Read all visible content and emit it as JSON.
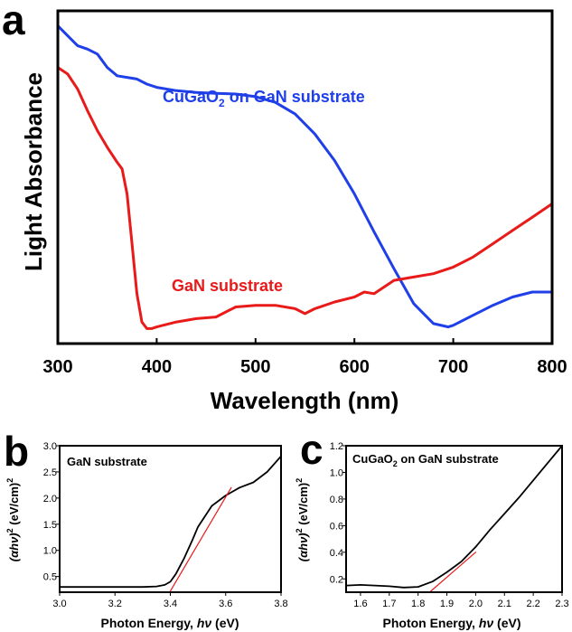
{
  "panels": {
    "a": {
      "letter": "a"
    },
    "b": {
      "letter": "b"
    },
    "c": {
      "letter": "c"
    }
  },
  "chart_data": [
    {
      "id": "a",
      "type": "line",
      "xlabel": "Wavelength (nm)",
      "ylabel": "Light Absorbance",
      "xlim": [
        300,
        800
      ],
      "ylim": [
        0,
        1
      ],
      "xticks": [
        300,
        400,
        500,
        600,
        700,
        800
      ],
      "yticks_visible": false,
      "grid": false,
      "series": [
        {
          "name_main": "CuGaO",
          "name_sub": "2",
          "name_rest": " on GaN substrate",
          "color": "#1f3fe8",
          "x": [
            300,
            310,
            320,
            330,
            340,
            350,
            360,
            370,
            380,
            390,
            400,
            420,
            440,
            460,
            480,
            500,
            520,
            540,
            560,
            580,
            600,
            620,
            640,
            660,
            680,
            695,
            700,
            720,
            740,
            760,
            780,
            800
          ],
          "y": [
            0.955,
            0.925,
            0.895,
            0.885,
            0.87,
            0.83,
            0.805,
            0.8,
            0.795,
            0.78,
            0.77,
            0.76,
            0.755,
            0.752,
            0.75,
            0.742,
            0.725,
            0.69,
            0.63,
            0.55,
            0.45,
            0.335,
            0.225,
            0.12,
            0.06,
            0.05,
            0.055,
            0.085,
            0.115,
            0.14,
            0.155,
            0.155
          ]
        },
        {
          "name_main": "GaN substrate",
          "name_sub": "",
          "name_rest": "",
          "color": "#e81a1a",
          "x": [
            300,
            310,
            320,
            330,
            340,
            350,
            360,
            365,
            370,
            375,
            380,
            385,
            390,
            395,
            400,
            420,
            440,
            460,
            480,
            500,
            520,
            540,
            550,
            560,
            580,
            600,
            610,
            620,
            640,
            660,
            680,
            700,
            720,
            740,
            760,
            780,
            800
          ],
          "y": [
            0.83,
            0.81,
            0.765,
            0.7,
            0.64,
            0.59,
            0.545,
            0.525,
            0.45,
            0.3,
            0.15,
            0.065,
            0.045,
            0.045,
            0.05,
            0.065,
            0.075,
            0.08,
            0.11,
            0.115,
            0.115,
            0.105,
            0.09,
            0.105,
            0.125,
            0.14,
            0.155,
            0.15,
            0.19,
            0.2,
            0.21,
            0.23,
            0.26,
            0.3,
            0.34,
            0.38,
            0.42
          ]
        }
      ]
    },
    {
      "id": "b",
      "type": "line",
      "annotation": "GaN substrate",
      "xlabel_prefix": "Photon Energy, ",
      "xlabel_var": "hν",
      "xlabel_suffix": " (eV)",
      "ylabel_var": "(αhν)",
      "ylabel_sup": "2",
      "ylabel_unit": " (eV/cm)",
      "ylabel_unit_sup": "2",
      "xlim": [
        3.0,
        3.8
      ],
      "ylim": [
        0.2,
        3.0
      ],
      "xticks": [
        "3.0",
        "3.2",
        "3.4",
        "3.6",
        "3.8"
      ],
      "yticks": [
        "0.5",
        "1.0",
        "1.5",
        "2.0",
        "2.5",
        "3.0"
      ],
      "series": [
        {
          "role": "data",
          "color": "#000000",
          "x": [
            3.0,
            3.1,
            3.2,
            3.3,
            3.35,
            3.38,
            3.4,
            3.42,
            3.45,
            3.48,
            3.5,
            3.55,
            3.6,
            3.65,
            3.7,
            3.75,
            3.8
          ],
          "y": [
            0.3,
            0.3,
            0.3,
            0.3,
            0.31,
            0.34,
            0.4,
            0.55,
            0.85,
            1.2,
            1.45,
            1.85,
            2.05,
            2.2,
            2.3,
            2.5,
            2.8
          ]
        },
        {
          "role": "tangent",
          "color": "#e81a1a",
          "x": [
            3.4,
            3.62
          ],
          "y": [
            0.22,
            2.2
          ]
        }
      ]
    },
    {
      "id": "c",
      "type": "line",
      "annotation_main": "CuGaO",
      "annotation_sub": "2",
      "annotation_rest": " on GaN substrate",
      "xlabel_prefix": "Photon Energy, ",
      "xlabel_var": "hν",
      "xlabel_suffix": " (eV)",
      "ylabel_var": "(αhν)",
      "ylabel_sup": "2",
      "ylabel_unit": " (eV/cm)",
      "ylabel_unit_sup": "2",
      "xlim": [
        1.55,
        2.3
      ],
      "ylim": [
        0.1,
        1.2
      ],
      "xticks": [
        "1.6",
        "1.7",
        "1.8",
        "1.9",
        "2.0",
        "2.1",
        "2.2",
        "2.3"
      ],
      "yticks": [
        "0.2",
        "0.4",
        "0.6",
        "0.8",
        "1.0",
        "1.2"
      ],
      "series": [
        {
          "role": "data",
          "color": "#000000",
          "x": [
            1.55,
            1.6,
            1.65,
            1.7,
            1.75,
            1.8,
            1.85,
            1.9,
            1.95,
            2.0,
            2.05,
            2.1,
            2.15,
            2.2,
            2.25,
            2.3
          ],
          "y": [
            0.15,
            0.155,
            0.15,
            0.145,
            0.135,
            0.14,
            0.18,
            0.25,
            0.33,
            0.44,
            0.57,
            0.69,
            0.81,
            0.94,
            1.07,
            1.2
          ]
        },
        {
          "role": "tangent",
          "color": "#e81a1a",
          "x": [
            1.84,
            2.0
          ],
          "y": [
            0.1,
            0.4
          ]
        }
      ]
    }
  ]
}
